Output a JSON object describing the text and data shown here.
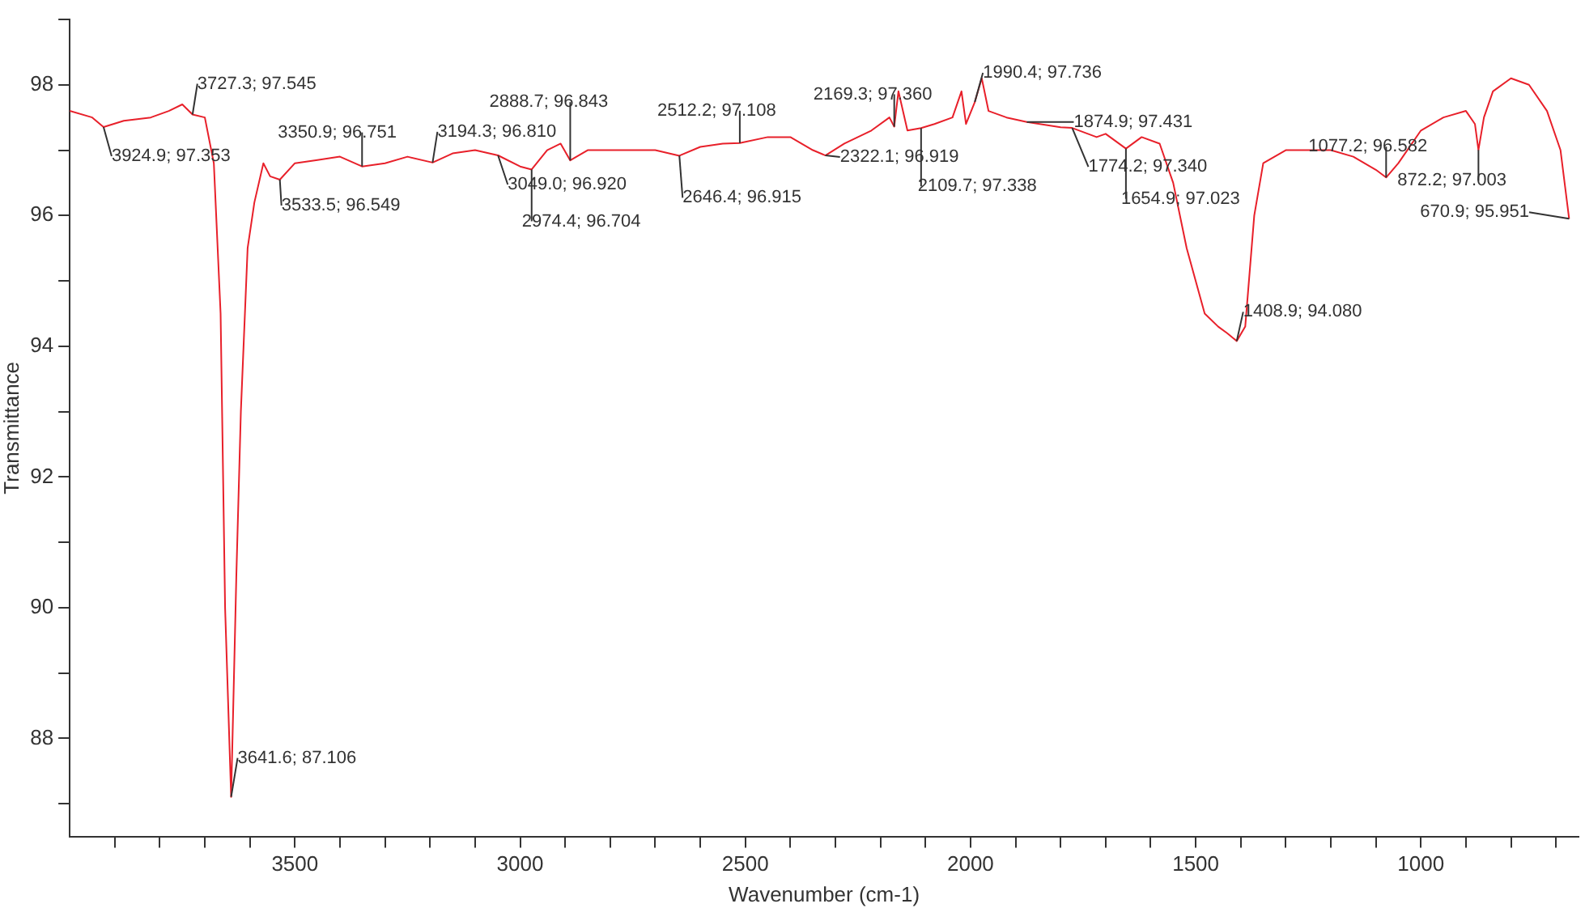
{
  "chart_data": {
    "type": "line",
    "xlabel": "Wavenumber (cm-1)",
    "ylabel": "Transmittance",
    "x": [
      4000,
      3950,
      3924.9,
      3880,
      3820,
      3780,
      3750,
      3727.3,
      3700,
      3680,
      3665,
      3655,
      3641.6,
      3630,
      3620,
      3605,
      3590,
      3570,
      3555,
      3533.5,
      3500,
      3450,
      3400,
      3350.9,
      3300,
      3250,
      3194.3,
      3150,
      3100,
      3049.0,
      3000,
      2974.4,
      2940,
      2910,
      2888.7,
      2850,
      2800,
      2750,
      2700,
      2646.4,
      2600,
      2550,
      2512.2,
      2450,
      2400,
      2350,
      2322.1,
      2280,
      2220,
      2180,
      2169.3,
      2160,
      2140,
      2109.7,
      2080,
      2040,
      2020,
      2010,
      1990.4,
      1975,
      1960,
      1920,
      1874.9,
      1800,
      1774.2,
      1720,
      1700,
      1654.9,
      1620,
      1580,
      1550,
      1520,
      1480,
      1450,
      1430,
      1408.9,
      1390,
      1370,
      1350,
      1300,
      1250,
      1200,
      1150,
      1100,
      1077.2,
      1050,
      1000,
      950,
      900,
      880,
      872.2,
      860,
      840,
      800,
      760,
      720,
      690,
      670.9
    ],
    "series": [
      {
        "color": "#e8202a",
        "values": [
          97.6,
          97.5,
          97.353,
          97.45,
          97.5,
          97.6,
          97.7,
          97.545,
          97.5,
          96.8,
          94.5,
          90,
          87.106,
          90.5,
          93,
          95.5,
          96.2,
          96.8,
          96.6,
          96.549,
          96.8,
          96.85,
          96.9,
          96.751,
          96.8,
          96.9,
          96.81,
          96.95,
          97.0,
          96.92,
          96.75,
          96.704,
          97.0,
          97.1,
          96.843,
          97.0,
          97.0,
          97.0,
          97.0,
          96.915,
          97.05,
          97.1,
          97.108,
          97.2,
          97.2,
          97.0,
          96.919,
          97.1,
          97.3,
          97.5,
          97.36,
          97.9,
          97.3,
          97.338,
          97.4,
          97.5,
          97.9,
          97.4,
          97.736,
          98.1,
          97.6,
          97.5,
          97.431,
          97.35,
          97.34,
          97.2,
          97.25,
          97.023,
          97.2,
          97.1,
          96.5,
          95.5,
          94.5,
          94.3,
          94.2,
          94.08,
          94.3,
          96,
          96.8,
          97.0,
          97.0,
          97.0,
          96.9,
          96.7,
          96.582,
          96.8,
          97.3,
          97.5,
          97.6,
          97.4,
          97.003,
          97.5,
          97.9,
          98.1,
          98.0,
          97.6,
          97.0,
          95.951
        ]
      }
    ],
    "xlim": [
      4000,
      650
    ],
    "ylim": [
      86.5,
      99
    ],
    "xticks": [
      {
        "value": 3900,
        "label": null
      },
      {
        "value": 3800,
        "label": null
      },
      {
        "value": 3700,
        "label": null
      },
      {
        "value": 3600,
        "label": null
      },
      3500,
      {
        "value": 3400,
        "label": null
      },
      {
        "value": 3300,
        "label": null
      },
      {
        "value": 3200,
        "label": null
      },
      {
        "value": 3100,
        "label": null
      },
      3000,
      {
        "value": 2900,
        "label": null
      },
      {
        "value": 2800,
        "label": null
      },
      {
        "value": 2700,
        "label": null
      },
      {
        "value": 2600,
        "label": null
      },
      2500,
      {
        "value": 2400,
        "label": null
      },
      {
        "value": 2300,
        "label": null
      },
      {
        "value": 2200,
        "label": null
      },
      {
        "value": 2100,
        "label": null
      },
      2000,
      {
        "value": 1900,
        "label": null
      },
      {
        "value": 1800,
        "label": null
      },
      {
        "value": 1700,
        "label": null
      },
      {
        "value": 1600,
        "label": null
      },
      1500,
      {
        "value": 1400,
        "label": null
      },
      {
        "value": 1300,
        "label": null
      },
      {
        "value": 1200,
        "label": null
      },
      {
        "value": 1100,
        "label": null
      },
      1000,
      {
        "value": 900,
        "label": null
      },
      {
        "value": 800,
        "label": null
      },
      {
        "value": 700,
        "label": null
      }
    ],
    "yticks": [
      {
        "value": 87,
        "label": null
      },
      88,
      {
        "value": 89,
        "label": null
      },
      90,
      {
        "value": 91,
        "label": null
      },
      92,
      {
        "value": 93,
        "label": null
      },
      94,
      {
        "value": 95,
        "label": null
      },
      96,
      {
        "value": 97,
        "label": null
      },
      98,
      {
        "value": 99,
        "label": null
      }
    ],
    "annotations": [
      {
        "text": "3924.9; 97.353",
        "x": 3924.9,
        "y": 97.353
      },
      {
        "text": "3727.3; 97.545",
        "x": 3727.3,
        "y": 97.545
      },
      {
        "text": "3350.9; 96.751",
        "x": 3350.9,
        "y": 96.751
      },
      {
        "text": "3194.3; 96.810",
        "x": 3194.3,
        "y": 96.81
      },
      {
        "text": "3533.5; 96.549",
        "x": 3533.5,
        "y": 96.549
      },
      {
        "text": "2888.7; 96.843",
        "x": 2888.7,
        "y": 96.843
      },
      {
        "text": "3049.0; 96.920",
        "x": 3049.0,
        "y": 96.92
      },
      {
        "text": "2974.4; 96.704",
        "x": 2974.4,
        "y": 96.704
      },
      {
        "text": "2512.2; 97.108",
        "x": 2512.2,
        "y": 97.108
      },
      {
        "text": "2646.4; 96.915",
        "x": 2646.4,
        "y": 96.915
      },
      {
        "text": "2169.3; 97.360",
        "x": 2169.3,
        "y": 97.36
      },
      {
        "text": "2322.1; 96.919",
        "x": 2322.1,
        "y": 96.919
      },
      {
        "text": "2109.7; 97.338",
        "x": 2109.7,
        "y": 97.338
      },
      {
        "text": "1990.4; 97.736",
        "x": 1990.4,
        "y": 97.736
      },
      {
        "text": "1874.9; 97.431",
        "x": 1874.9,
        "y": 97.431
      },
      {
        "text": "1774.2; 97.340",
        "x": 1774.2,
        "y": 97.34
      },
      {
        "text": "1654.9; 97.023",
        "x": 1654.9,
        "y": 97.023
      },
      {
        "text": "1408.9; 94.080",
        "x": 1408.9,
        "y": 94.08
      },
      {
        "text": "1077.2; 96.582",
        "x": 1077.2,
        "y": 96.582
      },
      {
        "text": "872.2; 97.003",
        "x": 872.2,
        "y": 97.003
      },
      {
        "text": "670.9; 95.951",
        "x": 670.9,
        "y": 95.951
      },
      {
        "text": "3641.6; 87.106",
        "x": 3641.6,
        "y": 87.106
      }
    ]
  }
}
